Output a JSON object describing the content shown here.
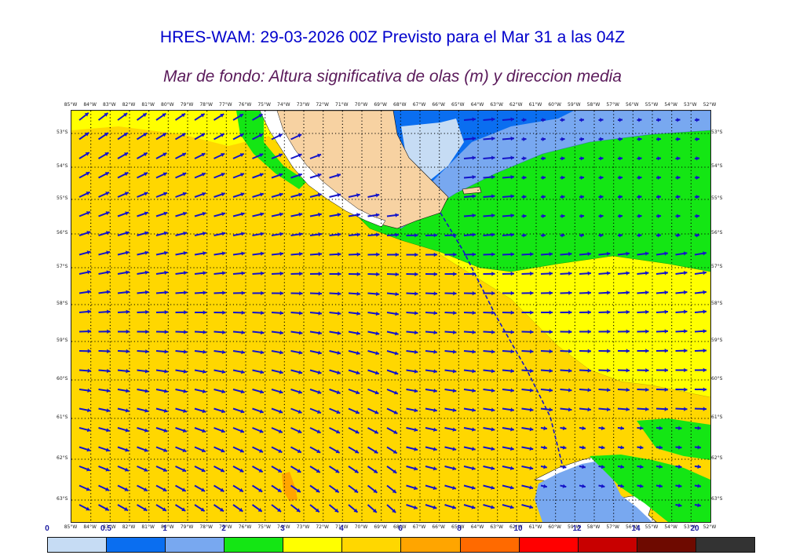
{
  "title": "HRES-WAM: 29-03-2026 00Z Previsto para el Mar 31 a las 04Z",
  "subtitle": "Mar de fondo: Altura significativa de olas (m) y direccion media",
  "longitudes": [
    "85°W",
    "84°W",
    "83°W",
    "82°W",
    "81°W",
    "80°W",
    "79°W",
    "78°W",
    "77°W",
    "76°W",
    "75°W",
    "74°W",
    "73°W",
    "72°W",
    "71°W",
    "70°W",
    "69°W",
    "68°W",
    "67°W",
    "66°W",
    "65°W",
    "64°W",
    "63°W",
    "62°W",
    "61°W",
    "60°W",
    "59°W",
    "58°W",
    "57°W",
    "56°W",
    "55°W",
    "54°W",
    "53°W",
    "52°W"
  ],
  "latitudes": [
    "53°S",
    "54°S",
    "55°S",
    "56°S",
    "57°S",
    "58°S",
    "59°S",
    "60°S",
    "61°S",
    "62°S",
    "63°S"
  ],
  "colorbar": {
    "labels": [
      "0",
      "0.5",
      "1",
      "2",
      "3",
      "4",
      "6",
      "8",
      "10",
      "12",
      "14",
      "20"
    ],
    "colors": [
      "#c6dcf4",
      "#0a6ef0",
      "#78a8f0",
      "#14e614",
      "#ffff00",
      "#ffd700",
      "#ffa500",
      "#ff6a00",
      "#ff0000",
      "#c80000",
      "#6e0a00",
      "#333333"
    ]
  },
  "colors": {
    "land": "#f7d2a2",
    "arrow": "#1414c8",
    "title": "#0000cc",
    "subtitle": "#5a1a5a"
  }
}
